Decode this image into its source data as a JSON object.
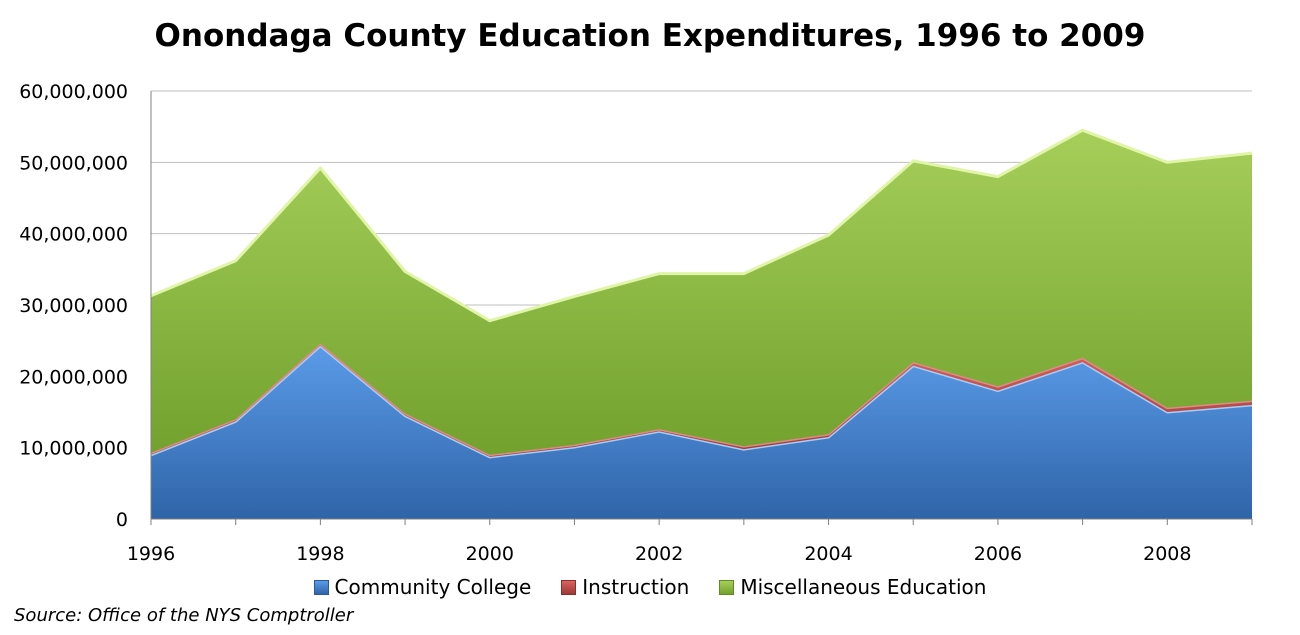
{
  "chart_data": {
    "type": "area",
    "stacked": true,
    "title": "Onondaga County Education Expenditures, 1996 to 2009",
    "x": [
      1996,
      1997,
      1998,
      1999,
      2000,
      2001,
      2002,
      2003,
      2004,
      2005,
      2006,
      2007,
      2008,
      2009
    ],
    "xticks": [
      1996,
      1998,
      2000,
      2002,
      2004,
      2006,
      2008
    ],
    "ylim": [
      0,
      60000000
    ],
    "yticks": [
      "0",
      "10,000,000",
      "20,000,000",
      "30,000,000",
      "40,000,000",
      "50,000,000",
      "60,000,000"
    ],
    "grid": true,
    "legend_position": "bottom",
    "series": [
      {
        "name": "Community College",
        "color": "#3e7bc4",
        "values": [
          9000000,
          13700000,
          24300000,
          14500000,
          8700000,
          10100000,
          12300000,
          9800000,
          11500000,
          21500000,
          18000000,
          22000000,
          15000000,
          16000000
        ]
      },
      {
        "name": "Instruction",
        "color": "#c0504d",
        "values": [
          300000,
          300000,
          300000,
          300000,
          300000,
          300000,
          300000,
          400000,
          400000,
          500000,
          600000,
          600000,
          600000,
          600000
        ]
      },
      {
        "name": "Miscellaneous Education",
        "color": "#8cb83e",
        "values": [
          22000000,
          22200000,
          24600000,
          19900000,
          18800000,
          20800000,
          21800000,
          24200000,
          27900000,
          28200000,
          29400000,
          31900000,
          34400000,
          34700000
        ]
      }
    ],
    "source": "Source:  Office of the NYS Comptroller"
  }
}
